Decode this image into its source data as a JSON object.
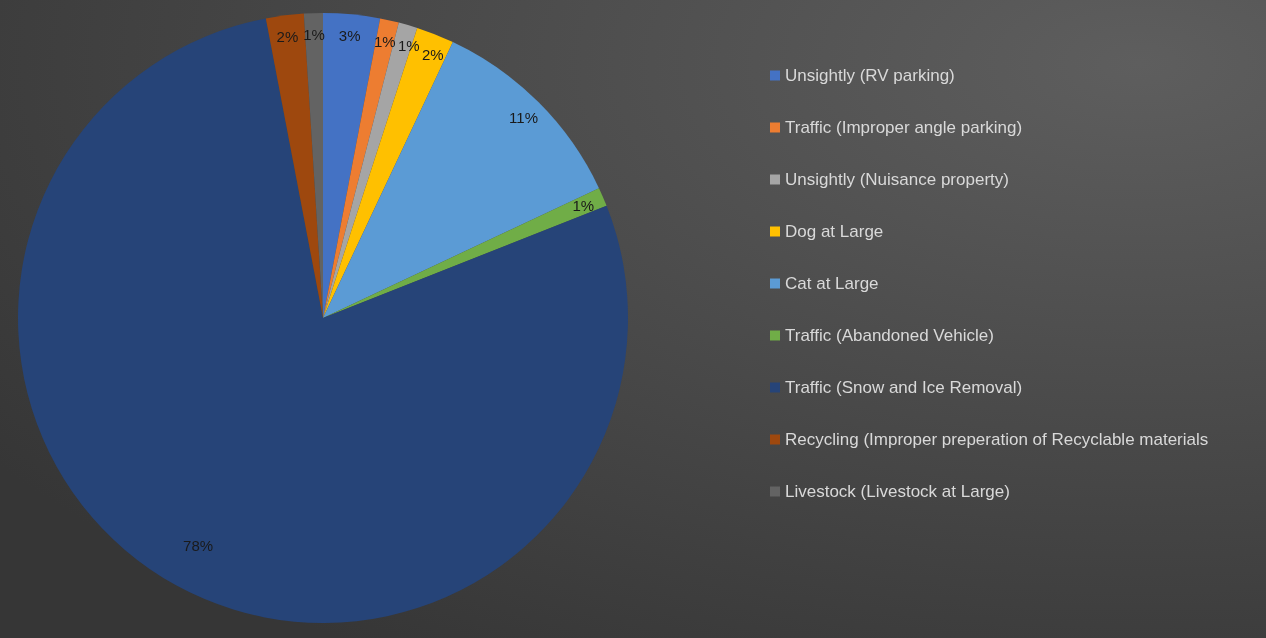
{
  "chart_data": {
    "type": "pie",
    "categories": [
      "Unsightly (RV parking)",
      "Traffic (Improper angle parking)",
      "Unsightly (Nuisance property)",
      "Dog at Large",
      "Cat at Large",
      "Traffic (Abandoned Vehicle)",
      "Traffic (Snow and Ice Removal)",
      "Recycling (Improper preperation of Recyclable materials",
      "Livestock (Livestock at Large)"
    ],
    "values": [
      3,
      1,
      1,
      2,
      11,
      1,
      78,
      2,
      1
    ],
    "colors": [
      "#4472c4",
      "#ed7d31",
      "#a5a5a5",
      "#ffc000",
      "#5b9bd5",
      "#70ad47",
      "#264478",
      "#9e480e",
      "#636363"
    ],
    "value_labels": [
      "3%",
      "1%",
      "1%",
      "2%",
      "11%",
      "1%",
      "78%",
      "2%",
      "1%"
    ],
    "legend": "right"
  }
}
